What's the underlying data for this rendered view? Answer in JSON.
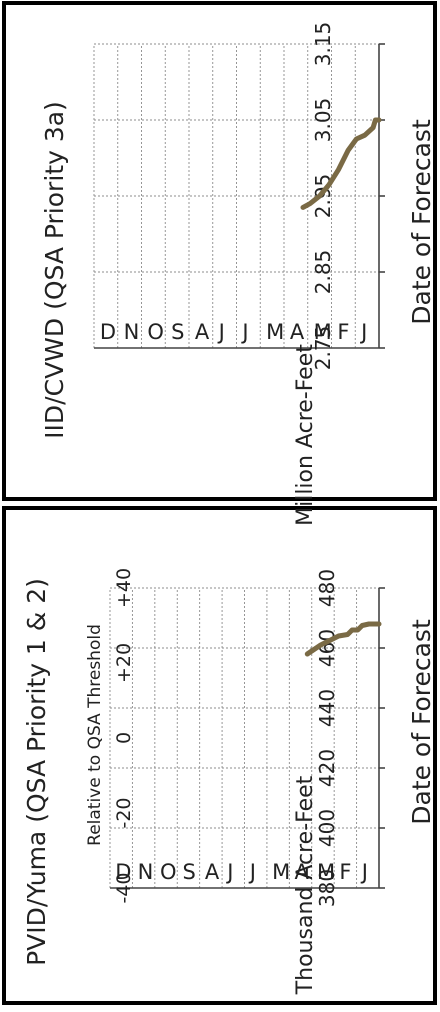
{
  "series_color": "#7a6a45",
  "chart_data": [
    {
      "type": "line",
      "title": "IID/CVWD (QSA Priority 3a)",
      "ylabel": "Million Acre-Feet",
      "xlabel": "Date of Forecast",
      "ylim": [
        2.75,
        3.15
      ],
      "yticks": [
        "2.75",
        "2.85",
        "2.95",
        "3.05",
        "3.15"
      ],
      "ytick_values": [
        2.75,
        2.85,
        2.95,
        3.05,
        3.15
      ],
      "months": [
        "J",
        "F",
        "M",
        "A",
        "M",
        "J",
        "J",
        "A",
        "S",
        "O",
        "N",
        "D"
      ],
      "series": [
        {
          "values": [
            [
              0.0,
              3.05
            ],
            [
              0.15,
              3.05
            ],
            [
              0.25,
              3.04
            ],
            [
              0.6,
              3.03
            ],
            [
              0.95,
              3.025
            ],
            [
              1.3,
              3.01
            ],
            [
              1.7,
              2.985
            ],
            [
              2.1,
              2.965
            ],
            [
              2.5,
              2.95
            ],
            [
              2.9,
              2.94
            ],
            [
              3.2,
              2.935
            ]
          ]
        }
      ]
    },
    {
      "type": "line",
      "title": "PVID/Yuma (QSA Priority 1 & 2)",
      "ylabel": "Thousand Acre-Feet",
      "xlabel": "Date of Forecast",
      "ylim": [
        380,
        480
      ],
      "yticks": [
        "380",
        "400",
        "420",
        "440",
        "460",
        "480"
      ],
      "ytick_values": [
        380,
        400,
        420,
        440,
        460,
        480
      ],
      "months": [
        "J",
        "F",
        "M",
        "A",
        "M",
        "J",
        "J",
        "A",
        "S",
        "O",
        "N",
        "D"
      ],
      "secondary_axis": {
        "title": "Relative to  QSA Threshold",
        "ticks": [
          "+40",
          "+20",
          "0",
          "-20",
          "-40"
        ],
        "tick_values": [
          40,
          20,
          0,
          -20,
          -40
        ]
      },
      "series": [
        {
          "values": [
            [
              0.0,
              468
            ],
            [
              0.45,
              468
            ],
            [
              0.75,
              467.5
            ],
            [
              0.95,
              466
            ],
            [
              1.2,
              466
            ],
            [
              1.4,
              464.5
            ],
            [
              1.8,
              464
            ],
            [
              2.2,
              462.5
            ],
            [
              2.6,
              461
            ],
            [
              2.9,
              459.5
            ],
            [
              3.2,
              458
            ]
          ]
        }
      ]
    }
  ]
}
